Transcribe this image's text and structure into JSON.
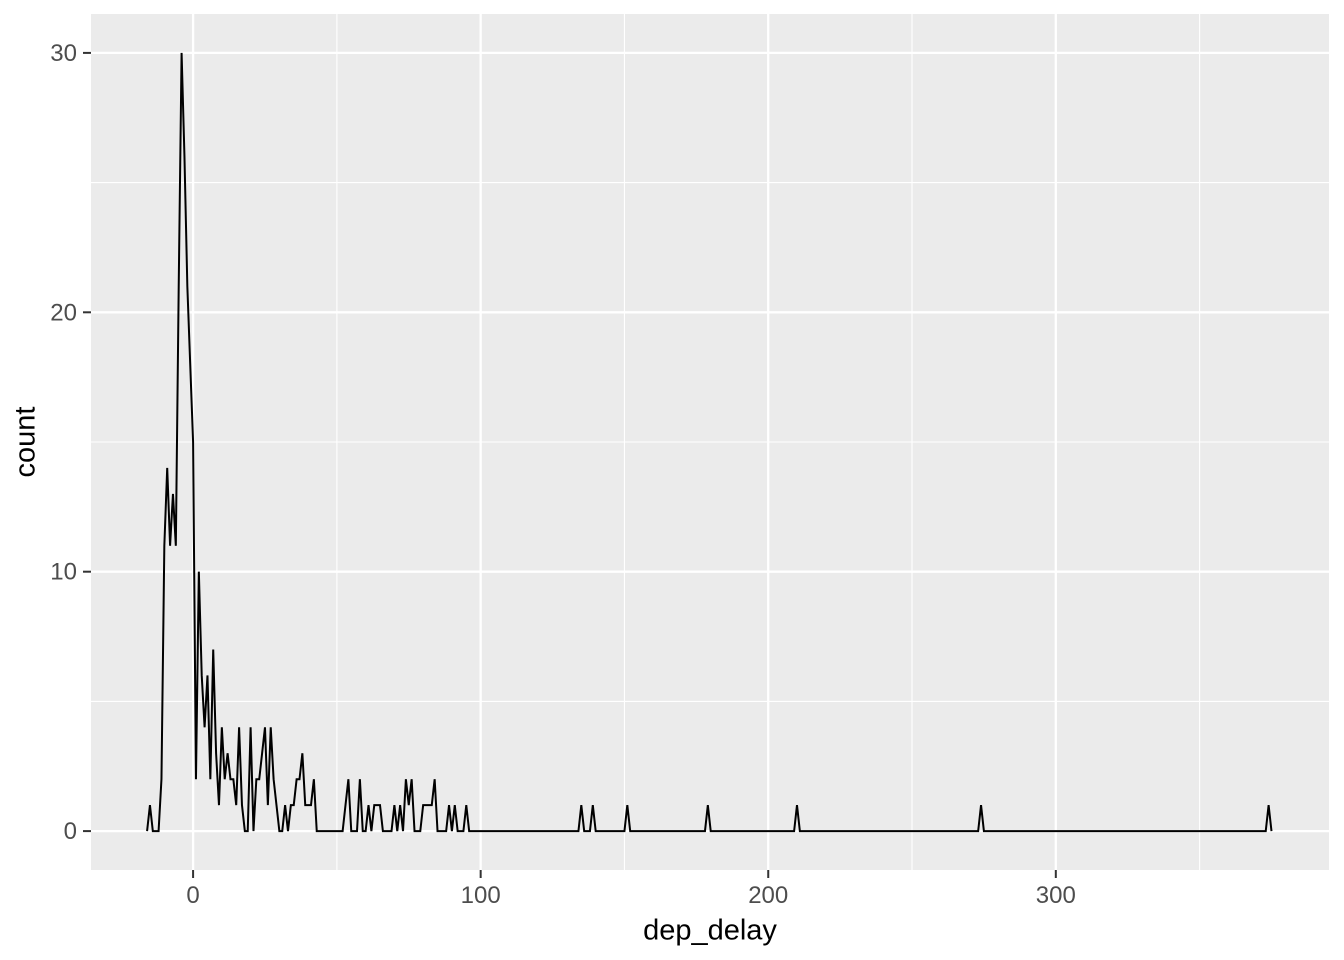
{
  "chart_data": {
    "type": "line",
    "subtype": "frequency-polygon",
    "title": "",
    "xlabel": "dep_delay",
    "ylabel": "count",
    "x_ticks": [
      0,
      100,
      200,
      300
    ],
    "x_minor_ticks": [
      50,
      150,
      250,
      350
    ],
    "y_ticks": [
      0,
      10,
      20,
      30
    ],
    "y_minor_ticks": [
      5,
      15,
      25
    ],
    "xlim": [
      -35.5,
      395
    ],
    "ylim": [
      -1.5,
      31.5
    ],
    "grid": "on",
    "legend": "none",
    "line_color": "#000000",
    "panel_background": "#EBEBEB",
    "grid_major_color": "#FFFFFF",
    "grid_minor_color": "#FFFFFF",
    "tick_mark_color": "#333333",
    "tick_label_color": "#4D4D4D",
    "points": [
      [
        -16,
        0
      ],
      [
        -15,
        1
      ],
      [
        -14,
        0
      ],
      [
        -12,
        0
      ],
      [
        -11,
        2
      ],
      [
        -10,
        11
      ],
      [
        -9,
        14
      ],
      [
        -8,
        11
      ],
      [
        -7,
        13
      ],
      [
        -6,
        11
      ],
      [
        -5,
        21
      ],
      [
        -4,
        30
      ],
      [
        -3,
        26
      ],
      [
        -2,
        21
      ],
      [
        -1,
        18
      ],
      [
        0,
        15
      ],
      [
        1,
        2
      ],
      [
        2,
        10
      ],
      [
        3,
        6
      ],
      [
        4,
        4
      ],
      [
        5,
        6
      ],
      [
        6,
        2
      ],
      [
        7,
        7
      ],
      [
        8,
        3
      ],
      [
        9,
        1
      ],
      [
        10,
        4
      ],
      [
        11,
        2
      ],
      [
        12,
        3
      ],
      [
        13,
        2
      ],
      [
        14,
        2
      ],
      [
        15,
        1
      ],
      [
        16,
        4
      ],
      [
        17,
        1
      ],
      [
        18,
        0
      ],
      [
        19,
        0
      ],
      [
        20,
        4
      ],
      [
        21,
        0
      ],
      [
        22,
        2
      ],
      [
        23,
        2
      ],
      [
        24,
        3
      ],
      [
        25,
        4
      ],
      [
        26,
        1
      ],
      [
        27,
        4
      ],
      [
        28,
        2
      ],
      [
        29,
        1
      ],
      [
        30,
        0
      ],
      [
        31,
        0
      ],
      [
        32,
        1
      ],
      [
        33,
        0
      ],
      [
        34,
        1
      ],
      [
        35,
        1
      ],
      [
        36,
        2
      ],
      [
        37,
        2
      ],
      [
        38,
        3
      ],
      [
        39,
        1
      ],
      [
        40,
        1
      ],
      [
        41,
        1
      ],
      [
        42,
        2
      ],
      [
        43,
        0
      ],
      [
        52,
        0
      ],
      [
        53,
        1
      ],
      [
        54,
        2
      ],
      [
        55,
        0
      ],
      [
        57,
        0
      ],
      [
        58,
        2
      ],
      [
        59,
        0
      ],
      [
        60,
        0
      ],
      [
        61,
        1
      ],
      [
        62,
        0
      ],
      [
        63,
        1
      ],
      [
        64,
        1
      ],
      [
        65,
        1
      ],
      [
        66,
        0
      ],
      [
        69,
        0
      ],
      [
        70,
        1
      ],
      [
        71,
        0
      ],
      [
        72,
        1
      ],
      [
        73,
        0
      ],
      [
        74,
        2
      ],
      [
        75,
        1
      ],
      [
        76,
        2
      ],
      [
        77,
        0
      ],
      [
        79,
        0
      ],
      [
        80,
        1
      ],
      [
        81,
        1
      ],
      [
        82,
        1
      ],
      [
        83,
        1
      ],
      [
        84,
        2
      ],
      [
        85,
        0
      ],
      [
        88,
        0
      ],
      [
        89,
        1
      ],
      [
        90,
        0
      ],
      [
        91,
        1
      ],
      [
        92,
        0
      ],
      [
        94,
        0
      ],
      [
        95,
        1
      ],
      [
        96,
        0
      ],
      [
        134,
        0
      ],
      [
        135,
        1
      ],
      [
        136,
        0
      ],
      [
        138,
        0
      ],
      [
        139,
        1
      ],
      [
        140,
        0
      ],
      [
        150,
        0
      ],
      [
        151,
        1
      ],
      [
        152,
        0
      ],
      [
        178,
        0
      ],
      [
        179,
        1
      ],
      [
        180,
        0
      ],
      [
        209,
        0
      ],
      [
        210,
        1
      ],
      [
        211,
        0
      ],
      [
        273,
        0
      ],
      [
        274,
        1
      ],
      [
        275,
        0
      ],
      [
        373,
        0
      ],
      [
        374,
        1
      ],
      [
        375,
        0
      ]
    ]
  }
}
